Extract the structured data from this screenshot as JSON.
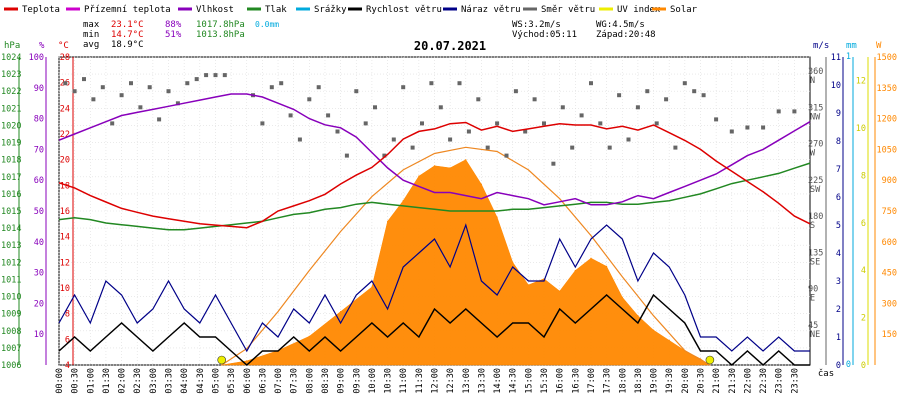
{
  "legend": [
    {
      "label": "Teplota",
      "color": "#dd0000"
    },
    {
      "label": "Přízemní teplota",
      "color": "#cc00cc"
    },
    {
      "label": "Vlhkost",
      "color": "#8800bb"
    },
    {
      "label": "Tlak",
      "color": "#228822"
    },
    {
      "label": "Srážky",
      "color": "#00aadd"
    },
    {
      "label": "Rychlost větru",
      "color": "#000000"
    },
    {
      "label": "Náraz větru",
      "color": "#000088"
    },
    {
      "label": "Směr větru",
      "color": "#666666"
    },
    {
      "label": "UV index",
      "color": "#eeee00"
    },
    {
      "label": "Solar",
      "color": "#ff8800"
    }
  ],
  "stats": {
    "max_label": "max",
    "min_label": "min",
    "avg_label": "avg",
    "max_temp": "23.1°C",
    "max_hum": "88%",
    "max_press": "1017.8hPa",
    "rain": "0.0mm",
    "min_temp": "14.7°C",
    "min_hum": "51%",
    "min_press": "1013.8hPa",
    "avg_temp": "18.9°C",
    "ws": "WS:3.2m/s",
    "wg": "WG:4.5m/s",
    "sunrise": "Východ:05:11",
    "sunset": "Západ:20:48"
  },
  "chart_data": {
    "type": "line",
    "title": "20.07.2021",
    "xlabel": "čas",
    "x_ticks": [
      "00:00",
      "00:30",
      "01:00",
      "01:30",
      "02:00",
      "02:30",
      "03:00",
      "03:30",
      "04:00",
      "04:30",
      "05:00",
      "05:30",
      "06:00",
      "06:30",
      "07:00",
      "07:30",
      "08:00",
      "08:30",
      "09:00",
      "09:30",
      "10:00",
      "10:30",
      "11:00",
      "11:30",
      "12:00",
      "12:30",
      "13:00",
      "13:30",
      "14:00",
      "14:30",
      "15:00",
      "15:30",
      "16:00",
      "16:30",
      "17:00",
      "17:30",
      "18:00",
      "18:30",
      "19:00",
      "19:30",
      "20:00",
      "20:30",
      "21:00",
      "21:30",
      "22:00",
      "22:30",
      "23:00",
      "23:30"
    ],
    "axes": {
      "pressure": {
        "unit": "hPa",
        "range": [
          1006,
          1024
        ],
        "ticks": [
          1006,
          1007,
          1008,
          1009,
          1010,
          1011,
          1012,
          1013,
          1014,
          1015,
          1016,
          1017,
          1018,
          1019,
          1020,
          1021,
          1022,
          1023,
          1024
        ]
      },
      "humidity": {
        "unit": "%",
        "range": [
          0,
          100
        ],
        "ticks": [
          10,
          20,
          30,
          40,
          50,
          60,
          70,
          80,
          90,
          100
        ]
      },
      "temperature": {
        "unit": "°C",
        "range": [
          4,
          28
        ],
        "ticks": [
          4,
          6,
          8,
          10,
          12,
          14,
          16,
          18,
          20,
          22,
          24,
          26,
          28
        ]
      },
      "wind_dir": {
        "unit": "",
        "ticks": [
          {
            "v": 45,
            "l": "NE"
          },
          {
            "v": 90,
            "l": "E"
          },
          {
            "v": 135,
            "l": "SE"
          },
          {
            "v": 180,
            "l": "S"
          },
          {
            "v": 225,
            "l": "SW"
          },
          {
            "v": 270,
            "l": "W"
          },
          {
            "v": 315,
            "l": "NW"
          },
          {
            "v": 360,
            "l": "N"
          }
        ]
      },
      "wind_speed": {
        "unit": "m/s",
        "range": [
          0,
          11
        ],
        "ticks": [
          0,
          1,
          2,
          3,
          4,
          5,
          6,
          7,
          8,
          9,
          10,
          11
        ]
      },
      "rain": {
        "unit": "mm",
        "ticks": [
          0,
          1
        ]
      },
      "uv": {
        "unit": "",
        "ticks": [
          0,
          2,
          4,
          6,
          8,
          10,
          12
        ]
      },
      "solar": {
        "unit": "W",
        "range": [
          0,
          1500
        ],
        "ticks": [
          150,
          300,
          450,
          600,
          750,
          900,
          1050,
          1200,
          1350,
          1500
        ]
      }
    },
    "series": [
      {
        "name": "Teplota",
        "axis": "temperature",
        "x": [
          0,
          0.5,
          1,
          1.5,
          2,
          2.5,
          3,
          3.5,
          4,
          4.5,
          5,
          5.5,
          6,
          6.5,
          7,
          7.5,
          8,
          8.5,
          9,
          9.5,
          10,
          10.5,
          11,
          11.5,
          12,
          12.5,
          13,
          13.5,
          14,
          14.5,
          15,
          15.5,
          16,
          16.5,
          17,
          17.5,
          18,
          18.5,
          19,
          19.5,
          20,
          20.5,
          21,
          21.5,
          22,
          22.5,
          23,
          23.5,
          24
        ],
        "values": [
          18.2,
          17.8,
          17.2,
          16.7,
          16.2,
          15.9,
          15.6,
          15.4,
          15.2,
          15.0,
          14.9,
          14.8,
          14.7,
          15.2,
          16.0,
          16.4,
          16.8,
          17.3,
          18.1,
          18.8,
          19.4,
          20.4,
          21.6,
          22.2,
          22.4,
          22.8,
          22.9,
          22.3,
          22.6,
          22.2,
          22.4,
          22.6,
          22.8,
          22.7,
          22.7,
          22.4,
          22.6,
          22.3,
          22.7,
          22.1,
          21.5,
          20.8,
          19.9,
          19.1,
          18.3,
          17.5,
          16.6,
          15.6,
          15.0
        ]
      },
      {
        "name": "Vlhkost",
        "axis": "humidity",
        "x": [
          0,
          0.5,
          1,
          1.5,
          2,
          2.5,
          3,
          3.5,
          4,
          4.5,
          5,
          5.5,
          6,
          6.5,
          7,
          7.5,
          8,
          8.5,
          9,
          9.5,
          10,
          10.5,
          11,
          11.5,
          12,
          12.5,
          13,
          13.5,
          14,
          14.5,
          15,
          15.5,
          16,
          16.5,
          17,
          17.5,
          18,
          18.5,
          19,
          19.5,
          20,
          20.5,
          21,
          21.5,
          22,
          22.5,
          23,
          23.5,
          24
        ],
        "values": [
          73,
          75,
          77,
          79,
          81,
          82,
          83,
          84,
          85,
          86,
          87,
          88,
          88,
          87,
          85,
          83,
          80,
          78,
          77,
          74,
          69,
          64,
          60,
          58,
          56,
          56,
          55,
          54,
          56,
          55,
          54,
          52,
          53,
          54,
          52,
          52,
          53,
          55,
          54,
          56,
          58,
          60,
          62,
          65,
          68,
          70,
          73,
          76,
          79
        ]
      },
      {
        "name": "Tlak",
        "axis": "pressure",
        "x": [
          0,
          0.5,
          1,
          1.5,
          2,
          2.5,
          3,
          3.5,
          4,
          4.5,
          5,
          5.5,
          6,
          6.5,
          7,
          7.5,
          8,
          8.5,
          9,
          9.5,
          10,
          10.5,
          11,
          11.5,
          12,
          12.5,
          13,
          13.5,
          14,
          14.5,
          15,
          15.5,
          16,
          16.5,
          17,
          17.5,
          18,
          18.5,
          19,
          19.5,
          20,
          20.5,
          21,
          21.5,
          22,
          22.5,
          23,
          23.5,
          24
        ],
        "values": [
          1014.5,
          1014.6,
          1014.5,
          1014.3,
          1014.2,
          1014.1,
          1014.0,
          1013.9,
          1013.9,
          1014.0,
          1014.1,
          1014.2,
          1014.3,
          1014.4,
          1014.6,
          1014.8,
          1014.9,
          1015.1,
          1015.2,
          1015.4,
          1015.5,
          1015.4,
          1015.3,
          1015.2,
          1015.1,
          1015.0,
          1015.0,
          1015.0,
          1015.0,
          1015.1,
          1015.1,
          1015.2,
          1015.3,
          1015.4,
          1015.5,
          1015.5,
          1015.4,
          1015.4,
          1015.5,
          1015.6,
          1015.8,
          1016.0,
          1016.3,
          1016.6,
          1016.8,
          1017.0,
          1017.2,
          1017.5,
          1017.8
        ]
      },
      {
        "name": "Rychlost větru",
        "axis": "wind_speed",
        "x": [
          0,
          0.5,
          1,
          1.5,
          2,
          2.5,
          3,
          3.5,
          4,
          4.5,
          5,
          5.5,
          6,
          6.5,
          7,
          7.5,
          8,
          8.5,
          9,
          9.5,
          10,
          10.5,
          11,
          11.5,
          12,
          12.5,
          13,
          13.5,
          14,
          14.5,
          15,
          15.5,
          16,
          16.5,
          17,
          17.5,
          18,
          18.5,
          19,
          19.5,
          20,
          20.5,
          21,
          21.5,
          22,
          22.5,
          23,
          23.5,
          24
        ],
        "values": [
          0.5,
          1.0,
          0.5,
          1.0,
          1.5,
          1.0,
          0.5,
          1.0,
          1.5,
          1.0,
          1.0,
          0.5,
          0.0,
          0.5,
          0.5,
          1.0,
          0.5,
          1.0,
          0.5,
          1.0,
          1.5,
          1.0,
          1.5,
          1.0,
          2.0,
          1.5,
          2.0,
          1.5,
          1.0,
          1.5,
          1.5,
          1.0,
          2.0,
          1.5,
          2.0,
          2.5,
          2.0,
          1.5,
          2.5,
          2.0,
          1.5,
          0.5,
          0.5,
          0.0,
          0.5,
          0.0,
          0.5,
          0.0,
          0.0
        ]
      },
      {
        "name": "Náraz větru",
        "axis": "wind_speed",
        "x": [
          0,
          0.5,
          1,
          1.5,
          2,
          2.5,
          3,
          3.5,
          4,
          4.5,
          5,
          5.5,
          6,
          6.5,
          7,
          7.5,
          8,
          8.5,
          9,
          9.5,
          10,
          10.5,
          11,
          11.5,
          12,
          12.5,
          13,
          13.5,
          14,
          14.5,
          15,
          15.5,
          16,
          16.5,
          17,
          17.5,
          18,
          18.5,
          19,
          19.5,
          20,
          20.5,
          21,
          21.5,
          22,
          22.5,
          23,
          23.5,
          24
        ],
        "values": [
          1.5,
          2.5,
          1.5,
          3.0,
          2.5,
          1.5,
          2.0,
          3.0,
          2.0,
          1.5,
          2.5,
          1.5,
          0.5,
          1.5,
          1.0,
          2.0,
          1.5,
          2.5,
          1.5,
          2.5,
          3.0,
          2.0,
          3.5,
          4.0,
          4.5,
          3.5,
          5.0,
          3.0,
          2.5,
          3.5,
          3.0,
          3.0,
          4.5,
          3.5,
          4.5,
          5.0,
          4.5,
          3.0,
          4.0,
          3.5,
          2.5,
          1.0,
          1.0,
          0.5,
          1.0,
          0.5,
          1.0,
          0.5,
          0.5
        ]
      },
      {
        "name": "Solar",
        "axis": "solar",
        "x": [
          5.2,
          6,
          7,
          8,
          9,
          10,
          10.5,
          11,
          11.5,
          12,
          12.5,
          13,
          13.5,
          14,
          14.5,
          15,
          15.5,
          16,
          16.5,
          17,
          17.5,
          18,
          18.5,
          19,
          19.5,
          20,
          20.5,
          20.8
        ],
        "values": [
          0,
          20,
          70,
          140,
          260,
          380,
          700,
          800,
          920,
          970,
          960,
          1000,
          880,
          720,
          500,
          390,
          420,
          360,
          460,
          520,
          480,
          330,
          240,
          170,
          120,
          70,
          30,
          0
        ]
      },
      {
        "name": "UV index",
        "axis": "uv",
        "x": [
          5.2,
          20.8
        ],
        "values": [
          0,
          0
        ]
      },
      {
        "name": "Solar max",
        "axis": "solar",
        "x": [
          5.2,
          6,
          7,
          8,
          9,
          10,
          11,
          12,
          13,
          14,
          15,
          16,
          17,
          18,
          19,
          20,
          20.8
        ],
        "values": [
          0,
          80,
          260,
          460,
          650,
          820,
          950,
          1030,
          1060,
          1040,
          950,
          810,
          630,
          430,
          240,
          70,
          0
        ]
      },
      {
        "name": "Směr větru",
        "axis": "wind_dir",
        "style": "points",
        "x": [
          0.2,
          0.5,
          0.8,
          1.1,
          1.4,
          1.7,
          2.0,
          2.3,
          2.6,
          2.9,
          3.2,
          3.5,
          3.8,
          4.1,
          4.4,
          4.7,
          5.0,
          5.3,
          6.2,
          6.5,
          6.8,
          7.1,
          7.4,
          7.7,
          8.0,
          8.3,
          8.6,
          8.9,
          9.2,
          9.5,
          9.8,
          10.1,
          10.4,
          10.7,
          11.0,
          11.3,
          11.6,
          11.9,
          12.2,
          12.5,
          12.8,
          13.1,
          13.4,
          13.7,
          14.0,
          14.3,
          14.6,
          14.9,
          15.2,
          15.5,
          15.8,
          16.1,
          16.4,
          16.7,
          17.0,
          17.3,
          17.6,
          17.9,
          18.2,
          18.5,
          18.8,
          19.1,
          19.4,
          19.7,
          20.0,
          20.3,
          20.6,
          21.0,
          21.5,
          22.0,
          22.5,
          23.0,
          23.5
        ],
        "values": [
          350,
          340,
          355,
          330,
          345,
          300,
          335,
          350,
          320,
          345,
          305,
          340,
          325,
          350,
          355,
          360,
          360,
          360,
          335,
          300,
          345,
          350,
          310,
          280,
          330,
          345,
          310,
          290,
          260,
          340,
          300,
          320,
          260,
          280,
          345,
          270,
          300,
          350,
          320,
          280,
          350,
          290,
          330,
          270,
          300,
          260,
          340,
          290,
          330,
          300,
          250,
          320,
          270,
          310,
          350,
          300,
          270,
          335,
          280,
          320,
          340,
          300,
          330,
          270,
          350,
          340,
          335,
          305,
          290,
          295,
          295,
          315,
          315
        ]
      }
    ]
  }
}
